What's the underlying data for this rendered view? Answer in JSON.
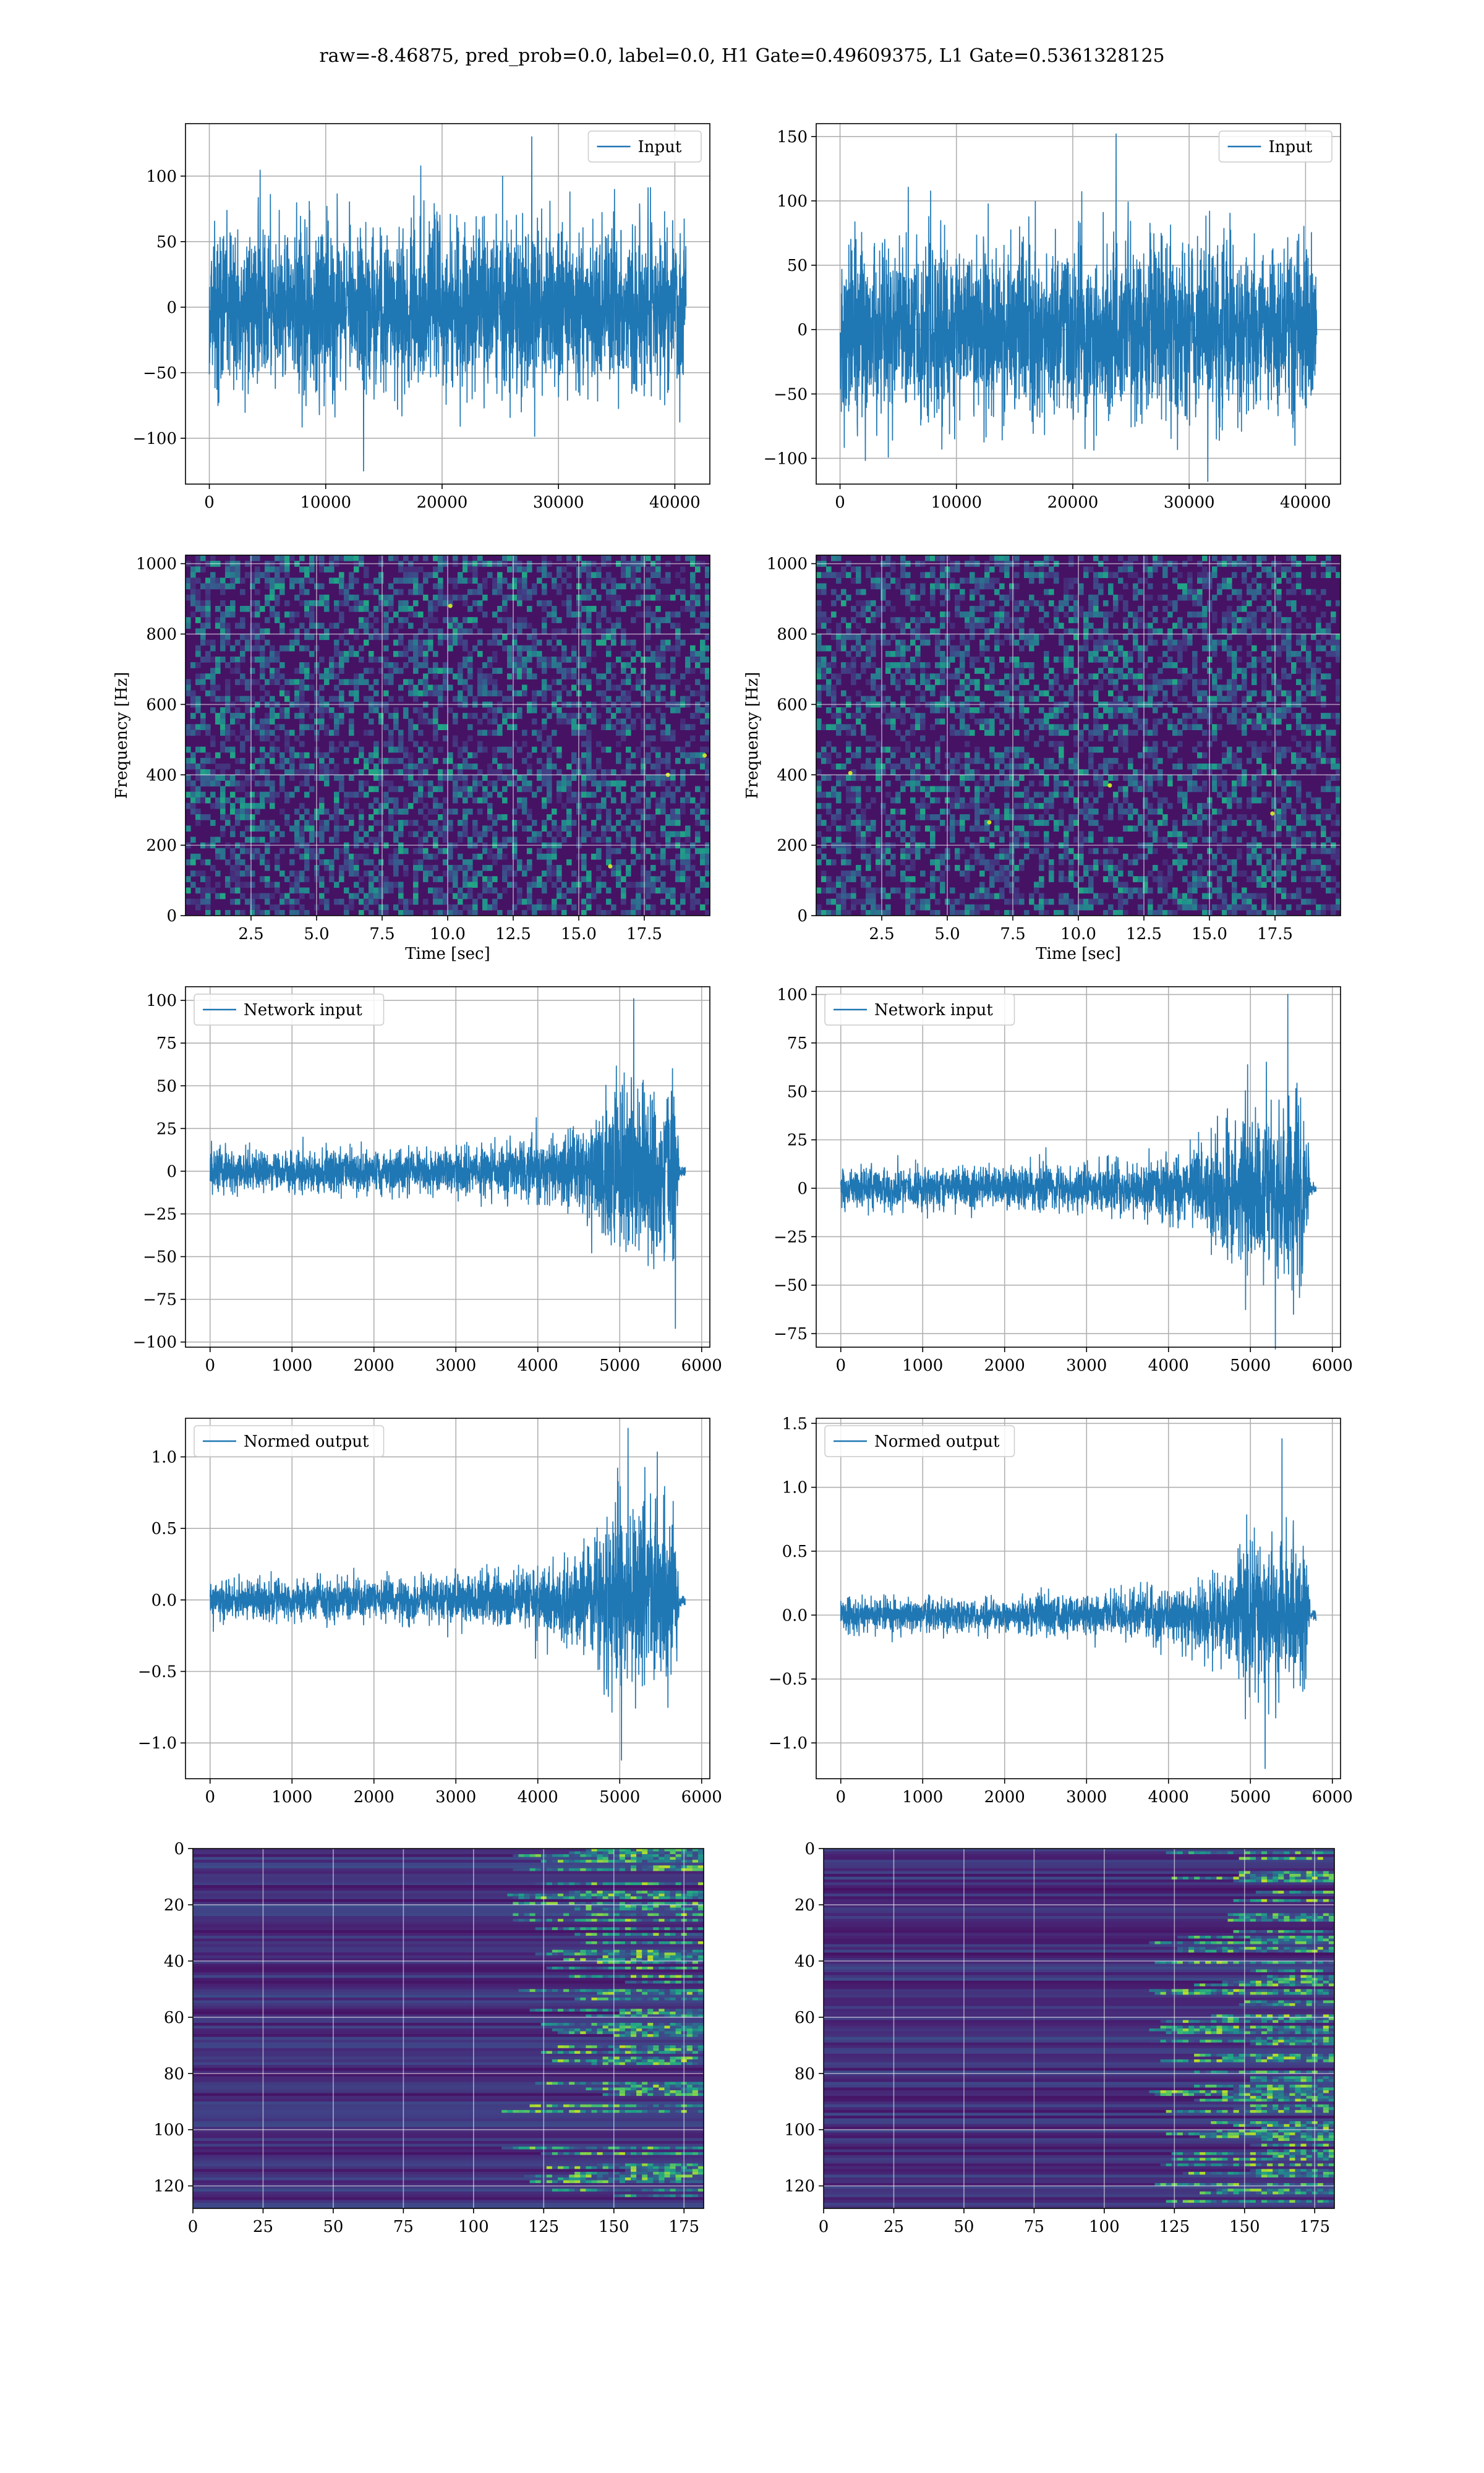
{
  "figure": {
    "title": "raw=-8.46875, pred_prob=0.0, label=0.0, H1 Gate=0.49609375, L1 Gate=0.5361328125"
  },
  "colors": {
    "series": "#1f77b4",
    "grid": "#b0b0b0",
    "viridis_dark": "#440154",
    "viridis_mid": "#21918c",
    "viridis_bright": "#fde725"
  },
  "chart_data": [
    {
      "id": "h1-input",
      "type": "line",
      "x_range": [
        0,
        40960
      ],
      "xlim": [
        -2048,
        43008
      ],
      "ylim": [
        -135,
        140
      ],
      "x_ticks": [
        0,
        10000,
        20000,
        30000,
        40000
      ],
      "y_ticks": [
        -100,
        -50,
        0,
        50,
        100
      ],
      "x_tick_labels": [
        "0",
        "10000",
        "20000",
        "30000",
        "40000"
      ],
      "y_tick_labels": [
        "−100",
        "−50",
        "0",
        "50",
        "100"
      ],
      "series": [
        {
          "name": "Input",
          "envelope": [
            [
              0,
              75
            ],
            [
              1,
              75
            ]
          ],
          "spike_max": 130,
          "spike_min": -125
        }
      ],
      "legend_position": "upper right",
      "grid": true
    },
    {
      "id": "l1-input",
      "type": "line",
      "x_range": [
        0,
        40960
      ],
      "xlim": [
        -2048,
        43008
      ],
      "ylim": [
        -120,
        160
      ],
      "x_ticks": [
        0,
        10000,
        20000,
        30000,
        40000
      ],
      "y_ticks": [
        -100,
        -50,
        0,
        50,
        100,
        150
      ],
      "x_tick_labels": [
        "0",
        "10000",
        "20000",
        "30000",
        "40000"
      ],
      "y_tick_labels": [
        "−100",
        "−50",
        "0",
        "50",
        "100",
        "150"
      ],
      "series": [
        {
          "name": "Input",
          "envelope": [
            [
              0,
              80
            ],
            [
              1,
              80
            ]
          ],
          "spike_max": 152,
          "spike_min": -118
        }
      ],
      "legend_position": "upper right",
      "grid": true
    },
    {
      "id": "h1-spectrogram",
      "type": "heatmap",
      "xlabel": "Time [sec]",
      "ylabel": "Frequency [Hz]",
      "xlim": [
        0,
        20
      ],
      "ylim": [
        0,
        1024
      ],
      "x_ticks": [
        2.5,
        5.0,
        7.5,
        10.0,
        12.5,
        15.0,
        17.5
      ],
      "y_ticks": [
        0,
        200,
        400,
        600,
        800,
        1000
      ],
      "x_tick_labels": [
        "2.5",
        "5.0",
        "7.5",
        "10.0",
        "12.5",
        "15.0",
        "17.5"
      ],
      "y_tick_labels": [
        "0",
        "200",
        "400",
        "600",
        "800",
        "1000"
      ],
      "bright_points": [
        [
          18.4,
          400
        ],
        [
          19.8,
          455
        ],
        [
          10.1,
          880
        ],
        [
          16.2,
          140
        ]
      ],
      "grid": true
    },
    {
      "id": "l1-spectrogram",
      "type": "heatmap",
      "xlabel": "Time [sec]",
      "ylabel": "Frequency [Hz]",
      "xlim": [
        0,
        20
      ],
      "ylim": [
        0,
        1024
      ],
      "x_ticks": [
        2.5,
        5.0,
        7.5,
        10.0,
        12.5,
        15.0,
        17.5
      ],
      "y_ticks": [
        0,
        200,
        400,
        600,
        800,
        1000
      ],
      "x_tick_labels": [
        "2.5",
        "5.0",
        "7.5",
        "10.0",
        "12.5",
        "15.0",
        "17.5"
      ],
      "y_tick_labels": [
        "0",
        "200",
        "400",
        "600",
        "800",
        "1000"
      ],
      "bright_points": [
        [
          17.4,
          290
        ],
        [
          6.6,
          265
        ],
        [
          11.2,
          370
        ],
        [
          1.3,
          405
        ]
      ],
      "grid": true
    },
    {
      "id": "h1-network-input",
      "type": "line",
      "x_range": [
        0,
        5800
      ],
      "xlim": [
        -300,
        6100
      ],
      "ylim": [
        -103,
        108
      ],
      "x_ticks": [
        0,
        1000,
        2000,
        3000,
        4000,
        5000,
        6000
      ],
      "y_ticks": [
        -100,
        -75,
        -50,
        -25,
        0,
        25,
        50,
        75,
        100
      ],
      "x_tick_labels": [
        "0",
        "1000",
        "2000",
        "3000",
        "4000",
        "5000",
        "6000"
      ],
      "y_tick_labels": [
        "−100",
        "−75",
        "−50",
        "−25",
        "0",
        "25",
        "50",
        "75",
        "100"
      ],
      "series": [
        {
          "name": "Network input",
          "envelope": [
            [
              0,
              14
            ],
            [
              0.35,
              14
            ],
            [
              0.55,
              17
            ],
            [
              0.72,
              22
            ],
            [
              0.8,
              36
            ],
            [
              0.85,
              60
            ],
            [
              0.92,
              65
            ],
            [
              0.98,
              62
            ],
            [
              0.988,
              3
            ],
            [
              1,
              3
            ]
          ],
          "spike_max": 101,
          "spike_min": -92
        }
      ],
      "legend_position": "upper left",
      "grid": true
    },
    {
      "id": "l1-network-input",
      "type": "line",
      "x_range": [
        0,
        5800
      ],
      "xlim": [
        -300,
        6100
      ],
      "ylim": [
        -82,
        104
      ],
      "x_ticks": [
        0,
        1000,
        2000,
        3000,
        4000,
        5000,
        6000
      ],
      "y_ticks": [
        -75,
        -50,
        -25,
        0,
        25,
        50,
        75,
        100
      ],
      "x_tick_labels": [
        "0",
        "1000",
        "2000",
        "3000",
        "4000",
        "5000",
        "6000"
      ],
      "y_tick_labels": [
        "−75",
        "−50",
        "−25",
        "0",
        "25",
        "50",
        "75",
        "100"
      ],
      "series": [
        {
          "name": "Network input",
          "envelope": [
            [
              0,
              12
            ],
            [
              0.35,
              12
            ],
            [
              0.55,
              14
            ],
            [
              0.72,
              20
            ],
            [
              0.8,
              32
            ],
            [
              0.85,
              52
            ],
            [
              0.92,
              55
            ],
            [
              0.98,
              50
            ],
            [
              0.988,
              3
            ],
            [
              1,
              3
            ]
          ],
          "spike_max": 100,
          "spike_min": -83
        }
      ],
      "legend_position": "upper left",
      "grid": true
    },
    {
      "id": "h1-normed-output",
      "type": "line",
      "x_range": [
        0,
        5800
      ],
      "xlim": [
        -300,
        6100
      ],
      "ylim": [
        -1.25,
        1.27
      ],
      "x_ticks": [
        0,
        1000,
        2000,
        3000,
        4000,
        5000,
        6000
      ],
      "y_ticks": [
        -1.0,
        -0.5,
        0.0,
        0.5,
        1.0
      ],
      "x_tick_labels": [
        "0",
        "1000",
        "2000",
        "3000",
        "4000",
        "5000",
        "6000"
      ],
      "y_tick_labels": [
        "−1.0",
        "−0.5",
        "0.0",
        "0.5",
        "1.0"
      ],
      "series": [
        {
          "name": "Normed output",
          "envelope": [
            [
              0,
              0.16
            ],
            [
              0.35,
              0.16
            ],
            [
              0.55,
              0.2
            ],
            [
              0.72,
              0.26
            ],
            [
              0.8,
              0.42
            ],
            [
              0.85,
              0.72
            ],
            [
              0.92,
              0.76
            ],
            [
              0.98,
              0.72
            ],
            [
              0.988,
              0.04
            ],
            [
              1,
              0.04
            ]
          ],
          "spike_max": 1.2,
          "spike_min": -1.12
        }
      ],
      "legend_position": "upper left",
      "grid": true
    },
    {
      "id": "l1-normed-output",
      "type": "line",
      "x_range": [
        0,
        5800
      ],
      "xlim": [
        -300,
        6100
      ],
      "ylim": [
        -1.28,
        1.54
      ],
      "x_ticks": [
        0,
        1000,
        2000,
        3000,
        4000,
        5000,
        6000
      ],
      "y_ticks": [
        -1.0,
        -0.5,
        0.0,
        0.5,
        1.0,
        1.5
      ],
      "x_tick_labels": [
        "0",
        "1000",
        "2000",
        "3000",
        "4000",
        "5000",
        "6000"
      ],
      "y_tick_labels": [
        "−1.0",
        "−0.5",
        "0.0",
        "0.5",
        "1.0",
        "1.5"
      ],
      "series": [
        {
          "name": "Normed output",
          "envelope": [
            [
              0,
              0.15
            ],
            [
              0.35,
              0.15
            ],
            [
              0.55,
              0.18
            ],
            [
              0.72,
              0.25
            ],
            [
              0.8,
              0.4
            ],
            [
              0.85,
              0.66
            ],
            [
              0.92,
              0.7
            ],
            [
              0.98,
              0.64
            ],
            [
              0.988,
              0.04
            ],
            [
              1,
              0.04
            ]
          ],
          "spike_max": 1.38,
          "spike_min": -1.2
        }
      ],
      "legend_position": "upper left",
      "grid": true
    },
    {
      "id": "h1-feature-map",
      "type": "heatmap",
      "xlim": [
        0,
        182
      ],
      "ylim": [
        128,
        0
      ],
      "x_ticks": [
        0,
        25,
        50,
        75,
        100,
        125,
        150,
        175
      ],
      "y_ticks": [
        0,
        20,
        40,
        60,
        80,
        100,
        120
      ],
      "x_tick_labels": [
        "0",
        "25",
        "50",
        "75",
        "100",
        "125",
        "150",
        "175"
      ],
      "y_tick_labels": [
        "0",
        "20",
        "40",
        "60",
        "80",
        "100",
        "120"
      ],
      "activity_onset": 110,
      "grid": true
    },
    {
      "id": "l1-feature-map",
      "type": "heatmap",
      "xlim": [
        0,
        182
      ],
      "ylim": [
        128,
        0
      ],
      "x_ticks": [
        0,
        25,
        50,
        75,
        100,
        125,
        150,
        175
      ],
      "y_ticks": [
        0,
        20,
        40,
        60,
        80,
        100,
        120
      ],
      "x_tick_labels": [
        "0",
        "25",
        "50",
        "75",
        "100",
        "125",
        "150",
        "175"
      ],
      "y_tick_labels": [
        "0",
        "20",
        "40",
        "60",
        "80",
        "100",
        "120"
      ],
      "activity_onset": 115,
      "grid": true
    }
  ]
}
